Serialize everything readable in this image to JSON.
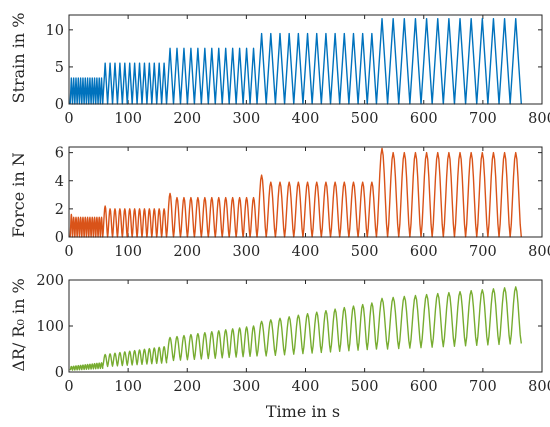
{
  "chart_data": [
    {
      "type": "line",
      "ylabel": "Strain in %",
      "xlabel": "",
      "xlim": [
        0,
        800
      ],
      "ylim": [
        0,
        12
      ],
      "xticks": [
        0,
        100,
        200,
        300,
        400,
        500,
        600,
        700,
        800
      ],
      "yticks": [
        0,
        5,
        10
      ],
      "color": "#0072BD",
      "series": [
        {
          "shape": "triangle",
          "blocks": [
            {
              "x_start": 2,
              "x_end": 57,
              "cycles": 14,
              "peak": 3.5,
              "base": 0.0
            },
            {
              "x_start": 57,
              "x_end": 165,
              "cycles": 13,
              "peak": 5.5,
              "base": 0.0
            },
            {
              "x_start": 165,
              "x_end": 318,
              "cycles": 13,
              "peak": 7.5,
              "base": 0.0
            },
            {
              "x_start": 318,
              "x_end": 520,
              "cycles": 13,
              "peak": 9.5,
              "base": 0.0
            },
            {
              "x_start": 520,
              "x_end": 765,
              "cycles": 13,
              "peak": 11.5,
              "base": 0.0
            }
          ]
        }
      ]
    },
    {
      "type": "line",
      "ylabel": "Force in N",
      "xlabel": "",
      "xlim": [
        0,
        800
      ],
      "ylim": [
        0,
        6.4
      ],
      "xticks": [
        0,
        100,
        200,
        300,
        400,
        500,
        600,
        700,
        800
      ],
      "yticks": [
        0,
        2,
        4,
        6
      ],
      "color": "#D95319",
      "series": [
        {
          "shape": "peak",
          "blocks": [
            {
              "x_start": 2,
              "x_end": 57,
              "cycles": 14,
              "peak": 1.4,
              "base": 0.0,
              "first_peak": 1.6
            },
            {
              "x_start": 57,
              "x_end": 165,
              "cycles": 13,
              "peak": 2.0,
              "base": 0.0,
              "first_peak": 2.2
            },
            {
              "x_start": 165,
              "x_end": 318,
              "cycles": 13,
              "peak": 2.8,
              "base": 0.0,
              "first_peak": 3.1
            },
            {
              "x_start": 318,
              "x_end": 520,
              "cycles": 13,
              "peak": 3.9,
              "base": 0.0,
              "first_peak": 4.4
            },
            {
              "x_start": 520,
              "x_end": 765,
              "cycles": 13,
              "peak": 6.0,
              "base": 0.0,
              "first_peak": 6.3
            }
          ]
        }
      ]
    },
    {
      "type": "line",
      "ylabel": "ΔR/ R₀ in %",
      "xlabel": "Time in s",
      "xlim": [
        0,
        800
      ],
      "ylim": [
        0,
        200
      ],
      "xticks": [
        0,
        100,
        200,
        300,
        400,
        500,
        600,
        700,
        800
      ],
      "yticks": [
        0,
        100,
        200
      ],
      "color": "#77AC30",
      "series": [
        {
          "shape": "peak",
          "blocks": [
            {
              "x_start": 2,
              "x_end": 57,
              "cycles": 14,
              "peak": 12,
              "base": 4,
              "peak_end": 20,
              "base_end": 8
            },
            {
              "x_start": 57,
              "x_end": 165,
              "cycles": 13,
              "peak": 38,
              "base": 12,
              "peak_end": 55,
              "base_end": 20
            },
            {
              "x_start": 165,
              "x_end": 318,
              "cycles": 13,
              "peak": 75,
              "base": 25,
              "peak_end": 100,
              "base_end": 35
            },
            {
              "x_start": 318,
              "x_end": 520,
              "cycles": 13,
              "peak": 110,
              "base": 35,
              "peak_end": 150,
              "base_end": 50
            },
            {
              "x_start": 520,
              "x_end": 765,
              "cycles": 13,
              "peak": 160,
              "base": 50,
              "peak_end": 185,
              "base_end": 62
            }
          ]
        }
      ]
    }
  ]
}
